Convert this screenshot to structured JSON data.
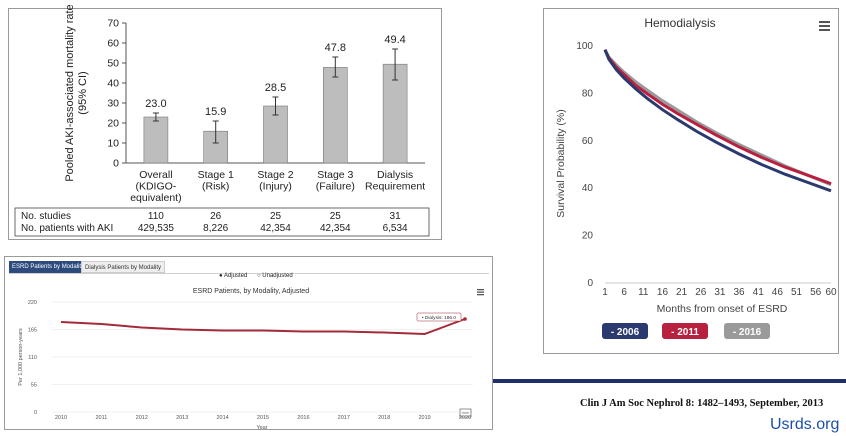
{
  "chart_data": [
    {
      "type": "bar",
      "ylabel": "Pooled AKI-associated mortality rate (95% CI)",
      "ylim": [
        0,
        70
      ],
      "yticks": [
        0,
        10,
        20,
        30,
        40,
        50,
        60,
        70
      ],
      "categories": [
        [
          "Overall",
          "(KDIGO-",
          "equivalent)"
        ],
        [
          "Stage 1",
          "(Risk)"
        ],
        [
          "Stage 2",
          "(Injury)"
        ],
        [
          "Stage 3",
          "(Failure)"
        ],
        [
          "Dialysis",
          "Requirement"
        ]
      ],
      "values": [
        23.0,
        15.9,
        28.5,
        47.8,
        49.4
      ],
      "value_labels": [
        "23.0",
        "15.9",
        "28.5",
        "47.8",
        "49.4"
      ],
      "ci_low": [
        21.0,
        10.0,
        24.0,
        43.0,
        41.5
      ],
      "ci_high": [
        25.0,
        21.0,
        33.0,
        53.0,
        57.0
      ],
      "bar_color": "#bdbdbd",
      "table": {
        "rows": [
          {
            "label": "No. studies",
            "values": [
              "110",
              "26",
              "25",
              "25",
              "31"
            ]
          },
          {
            "label": "No. patients with AKI",
            "values": [
              "429,535",
              "8,226",
              "42,354",
              "42,354",
              "6,534"
            ]
          }
        ]
      }
    },
    {
      "type": "line",
      "title": "Hemodialysis",
      "xlabel": "Months from onset of ESRD",
      "ylabel": "Survival Probability (%)",
      "xlim": [
        1,
        60
      ],
      "ylim": [
        0,
        100
      ],
      "xticks": [
        1,
        6,
        11,
        16,
        21,
        26,
        31,
        36,
        41,
        46,
        51,
        56,
        60
      ],
      "yticks": [
        0,
        20,
        40,
        60,
        80,
        100
      ],
      "grid": false,
      "legend_position": "bottom",
      "x": [
        1,
        2,
        4,
        6,
        9,
        12,
        16,
        20,
        25,
        30,
        36,
        42,
        48,
        54,
        60
      ],
      "series": [
        {
          "name": "2006",
          "color": "#2b3a6e",
          "values": [
            98,
            94,
            89.5,
            86,
            81.5,
            77.5,
            72.7,
            68.5,
            63.5,
            59,
            54,
            49.5,
            45.5,
            42,
            38.5
          ]
        },
        {
          "name": "2011",
          "color": "#b8203f",
          "values": [
            98,
            94.5,
            90.5,
            87.5,
            83,
            79.5,
            75,
            71,
            66.5,
            62,
            57,
            52.5,
            48.5,
            45,
            41.5
          ]
        },
        {
          "name": "2016",
          "color": "#9a9a9a",
          "values": [
            98,
            95,
            91.5,
            88.5,
            84.5,
            81,
            76.5,
            72.5,
            67.5,
            63,
            58,
            53.5,
            49,
            45,
            41
          ]
        }
      ],
      "legend_labels": [
        "- 2006",
        "- 2011",
        "- 2016"
      ]
    },
    {
      "type": "line",
      "title": "ESRD Patients, by Modality, Adjusted",
      "xlabel": "Year",
      "ylabel": "Per 1,000 person-years",
      "ylim": [
        0,
        220
      ],
      "yticks": [
        0,
        55,
        110,
        165,
        220
      ],
      "x": [
        "2010",
        "2011",
        "2012",
        "2013",
        "2014",
        "2015",
        "2016",
        "2017",
        "2018",
        "2019",
        "2020"
      ],
      "series": [
        {
          "name": "Dialysis",
          "color": "#a52a3a",
          "values": [
            180,
            176,
            169,
            165,
            163,
            163,
            161,
            161,
            159,
            156,
            186
          ]
        }
      ],
      "annotation": "Dialysis: 186.0",
      "tabs": [
        "ESRD Patients by Modality",
        "Dialysis Patients by Modality"
      ],
      "radio_options": [
        "Adjusted",
        "Unadjusted"
      ],
      "radio_selected": "Adjusted"
    }
  ],
  "footer": {
    "citation": "Clin J Am Soc Nephrol 8: 1482–1493, September, 2013",
    "site": "Usrds.org"
  },
  "icons": {
    "menu": "hamburger-menu-icon",
    "export": "export-icon"
  }
}
